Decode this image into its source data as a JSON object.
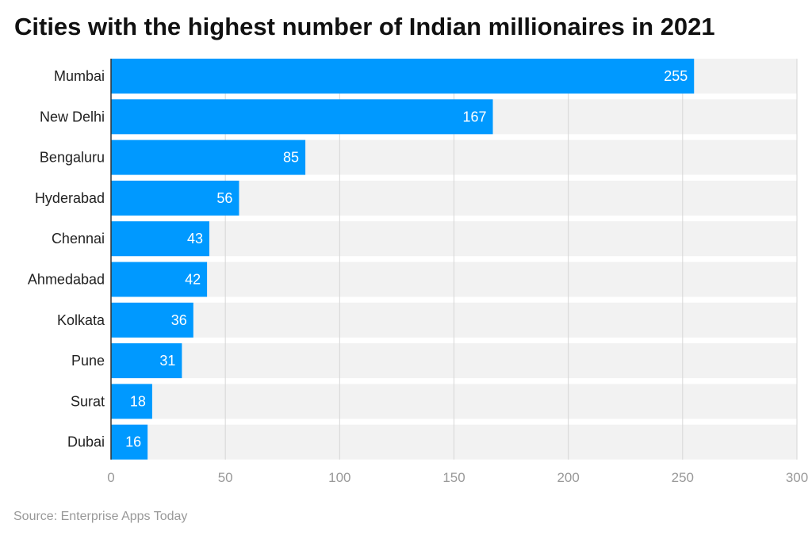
{
  "chart_data": {
    "type": "bar",
    "orientation": "horizontal",
    "title": "Cities with the highest number of Indian millionaires in 2021",
    "categories": [
      "Mumbai",
      "New Delhi",
      "Bengaluru",
      "Hyderabad",
      "Chennai",
      "Ahmedabad",
      "Kolkata",
      "Pune",
      "Surat",
      "Dubai"
    ],
    "values": [
      255,
      167,
      85,
      56,
      43,
      42,
      36,
      31,
      18,
      16
    ],
    "xlim": [
      0,
      300
    ],
    "xticks": [
      0,
      50,
      100,
      150,
      200,
      250,
      300
    ],
    "grid": true,
    "bar_color": "#0099ff",
    "band_color": "#f2f2f2",
    "source": "Source: Enterprise Apps Today"
  }
}
